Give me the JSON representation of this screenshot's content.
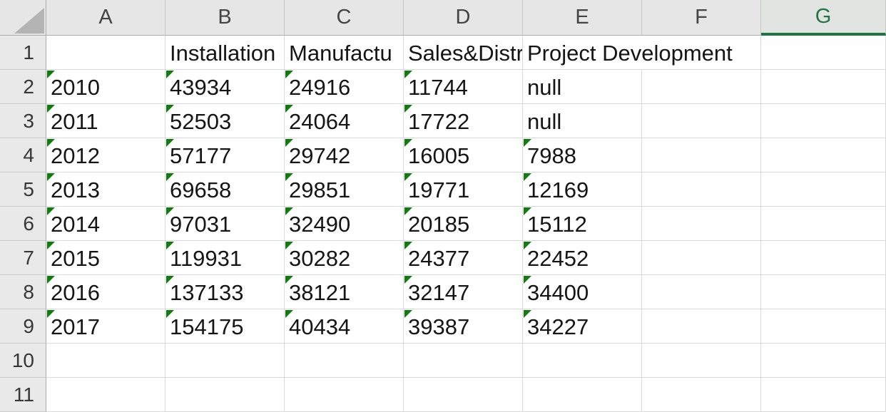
{
  "app": "excel-worksheet",
  "colors": {
    "accent_green": "#217346",
    "marker_green": "#107C10",
    "header_bg": "#E6E6E6",
    "row_header_bg": "#E9E9E9",
    "gridline": "#D9D9D9",
    "header_border": "#ABABAB",
    "cell_text": "#151515",
    "header_text": "#444444"
  },
  "sheet": {
    "column_headers": [
      "A",
      "B",
      "C",
      "D",
      "E",
      "F",
      "G"
    ],
    "selected_column": "G",
    "rows": [
      {
        "n": "1",
        "cells": [
          {
            "col": "B",
            "text": "Installation",
            "marker": false
          },
          {
            "col": "C",
            "text": "Manufactu",
            "marker": false
          },
          {
            "col": "D",
            "text": "Sales&Distr",
            "marker": false
          },
          {
            "col": "E",
            "text": "Project Development",
            "marker": false,
            "spill": true
          }
        ]
      },
      {
        "n": "2",
        "cells": [
          {
            "col": "A",
            "text": "2010",
            "marker": true
          },
          {
            "col": "B",
            "text": "43934",
            "marker": true
          },
          {
            "col": "C",
            "text": "24916",
            "marker": true
          },
          {
            "col": "D",
            "text": "11744",
            "marker": true
          },
          {
            "col": "E",
            "text": "null",
            "marker": false
          }
        ]
      },
      {
        "n": "3",
        "cells": [
          {
            "col": "A",
            "text": "2011",
            "marker": true
          },
          {
            "col": "B",
            "text": "52503",
            "marker": true
          },
          {
            "col": "C",
            "text": "24064",
            "marker": true
          },
          {
            "col": "D",
            "text": "17722",
            "marker": true
          },
          {
            "col": "E",
            "text": "null",
            "marker": false
          }
        ]
      },
      {
        "n": "4",
        "cells": [
          {
            "col": "A",
            "text": "2012",
            "marker": true
          },
          {
            "col": "B",
            "text": "57177",
            "marker": true
          },
          {
            "col": "C",
            "text": "29742",
            "marker": true
          },
          {
            "col": "D",
            "text": "16005",
            "marker": true
          },
          {
            "col": "E",
            "text": "7988",
            "marker": true
          }
        ]
      },
      {
        "n": "5",
        "cells": [
          {
            "col": "A",
            "text": "2013",
            "marker": true
          },
          {
            "col": "B",
            "text": "69658",
            "marker": true
          },
          {
            "col": "C",
            "text": "29851",
            "marker": true
          },
          {
            "col": "D",
            "text": "19771",
            "marker": true
          },
          {
            "col": "E",
            "text": "12169",
            "marker": true
          }
        ]
      },
      {
        "n": "6",
        "cells": [
          {
            "col": "A",
            "text": "2014",
            "marker": true
          },
          {
            "col": "B",
            "text": "97031",
            "marker": true
          },
          {
            "col": "C",
            "text": "32490",
            "marker": true
          },
          {
            "col": "D",
            "text": "20185",
            "marker": true
          },
          {
            "col": "E",
            "text": "15112",
            "marker": true
          }
        ]
      },
      {
        "n": "7",
        "cells": [
          {
            "col": "A",
            "text": "2015",
            "marker": true
          },
          {
            "col": "B",
            "text": "119931",
            "marker": true
          },
          {
            "col": "C",
            "text": "30282",
            "marker": true
          },
          {
            "col": "D",
            "text": "24377",
            "marker": true
          },
          {
            "col": "E",
            "text": "22452",
            "marker": true
          }
        ]
      },
      {
        "n": "8",
        "cells": [
          {
            "col": "A",
            "text": "2016",
            "marker": true
          },
          {
            "col": "B",
            "text": "137133",
            "marker": true
          },
          {
            "col": "C",
            "text": "38121",
            "marker": true
          },
          {
            "col": "D",
            "text": "32147",
            "marker": true
          },
          {
            "col": "E",
            "text": "34400",
            "marker": true
          }
        ]
      },
      {
        "n": "9",
        "cells": [
          {
            "col": "A",
            "text": "2017",
            "marker": true
          },
          {
            "col": "B",
            "text": "154175",
            "marker": true
          },
          {
            "col": "C",
            "text": "40434",
            "marker": true
          },
          {
            "col": "D",
            "text": "39387",
            "marker": true
          },
          {
            "col": "E",
            "text": "34227",
            "marker": true
          }
        ]
      },
      {
        "n": "10",
        "cells": []
      },
      {
        "n": "11",
        "cells": []
      }
    ]
  }
}
